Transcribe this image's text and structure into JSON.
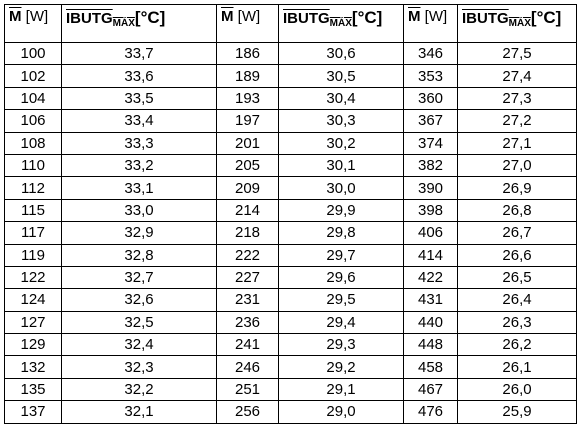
{
  "table": {
    "header": [
      {
        "symbol": "M",
        "unit": "[W]"
      },
      {
        "symbol": "IBUTG",
        "subscript": "MÁX",
        "unit": "[°C]"
      },
      {
        "symbol": "M",
        "unit": "[W]"
      },
      {
        "symbol": "IBUTG",
        "subscript": "MÁX",
        "unit": "[°C]"
      },
      {
        "symbol": "M",
        "unit": "[W]"
      },
      {
        "symbol": "IBUTG",
        "subscript": "MÁX",
        "unit": "[°C]"
      }
    ],
    "rows": [
      [
        "100",
        "33,7",
        "186",
        "30,6",
        "346",
        "27,5"
      ],
      [
        "102",
        "33,6",
        "189",
        "30,5",
        "353",
        "27,4"
      ],
      [
        "104",
        "33,5",
        "193",
        "30,4",
        "360",
        "27,3"
      ],
      [
        "106",
        "33,4",
        "197",
        "30,3",
        "367",
        "27,2"
      ],
      [
        "108",
        "33,3",
        "201",
        "30,2",
        "374",
        "27,1"
      ],
      [
        "110",
        "33,2",
        "205",
        "30,1",
        "382",
        "27,0"
      ],
      [
        "112",
        "33,1",
        "209",
        "30,0",
        "390",
        "26,9"
      ],
      [
        "115",
        "33,0",
        "214",
        "29,9",
        "398",
        "26,8"
      ],
      [
        "117",
        "32,9",
        "218",
        "29,8",
        "406",
        "26,7"
      ],
      [
        "119",
        "32,8",
        "222",
        "29,7",
        "414",
        "26,6"
      ],
      [
        "122",
        "32,7",
        "227",
        "29,6",
        "422",
        "26,5"
      ],
      [
        "124",
        "32,6",
        "231",
        "29,5",
        "431",
        "26,4"
      ],
      [
        "127",
        "32,5",
        "236",
        "29,4",
        "440",
        "26,3"
      ],
      [
        "129",
        "32,4",
        "241",
        "29,3",
        "448",
        "26,2"
      ],
      [
        "132",
        "32,3",
        "246",
        "29,2",
        "458",
        "26,1"
      ],
      [
        "135",
        "32,2",
        "251",
        "29,1",
        "467",
        "26,0"
      ],
      [
        "137",
        "32,1",
        "256",
        "29,0",
        "476",
        "25,9"
      ]
    ]
  }
}
